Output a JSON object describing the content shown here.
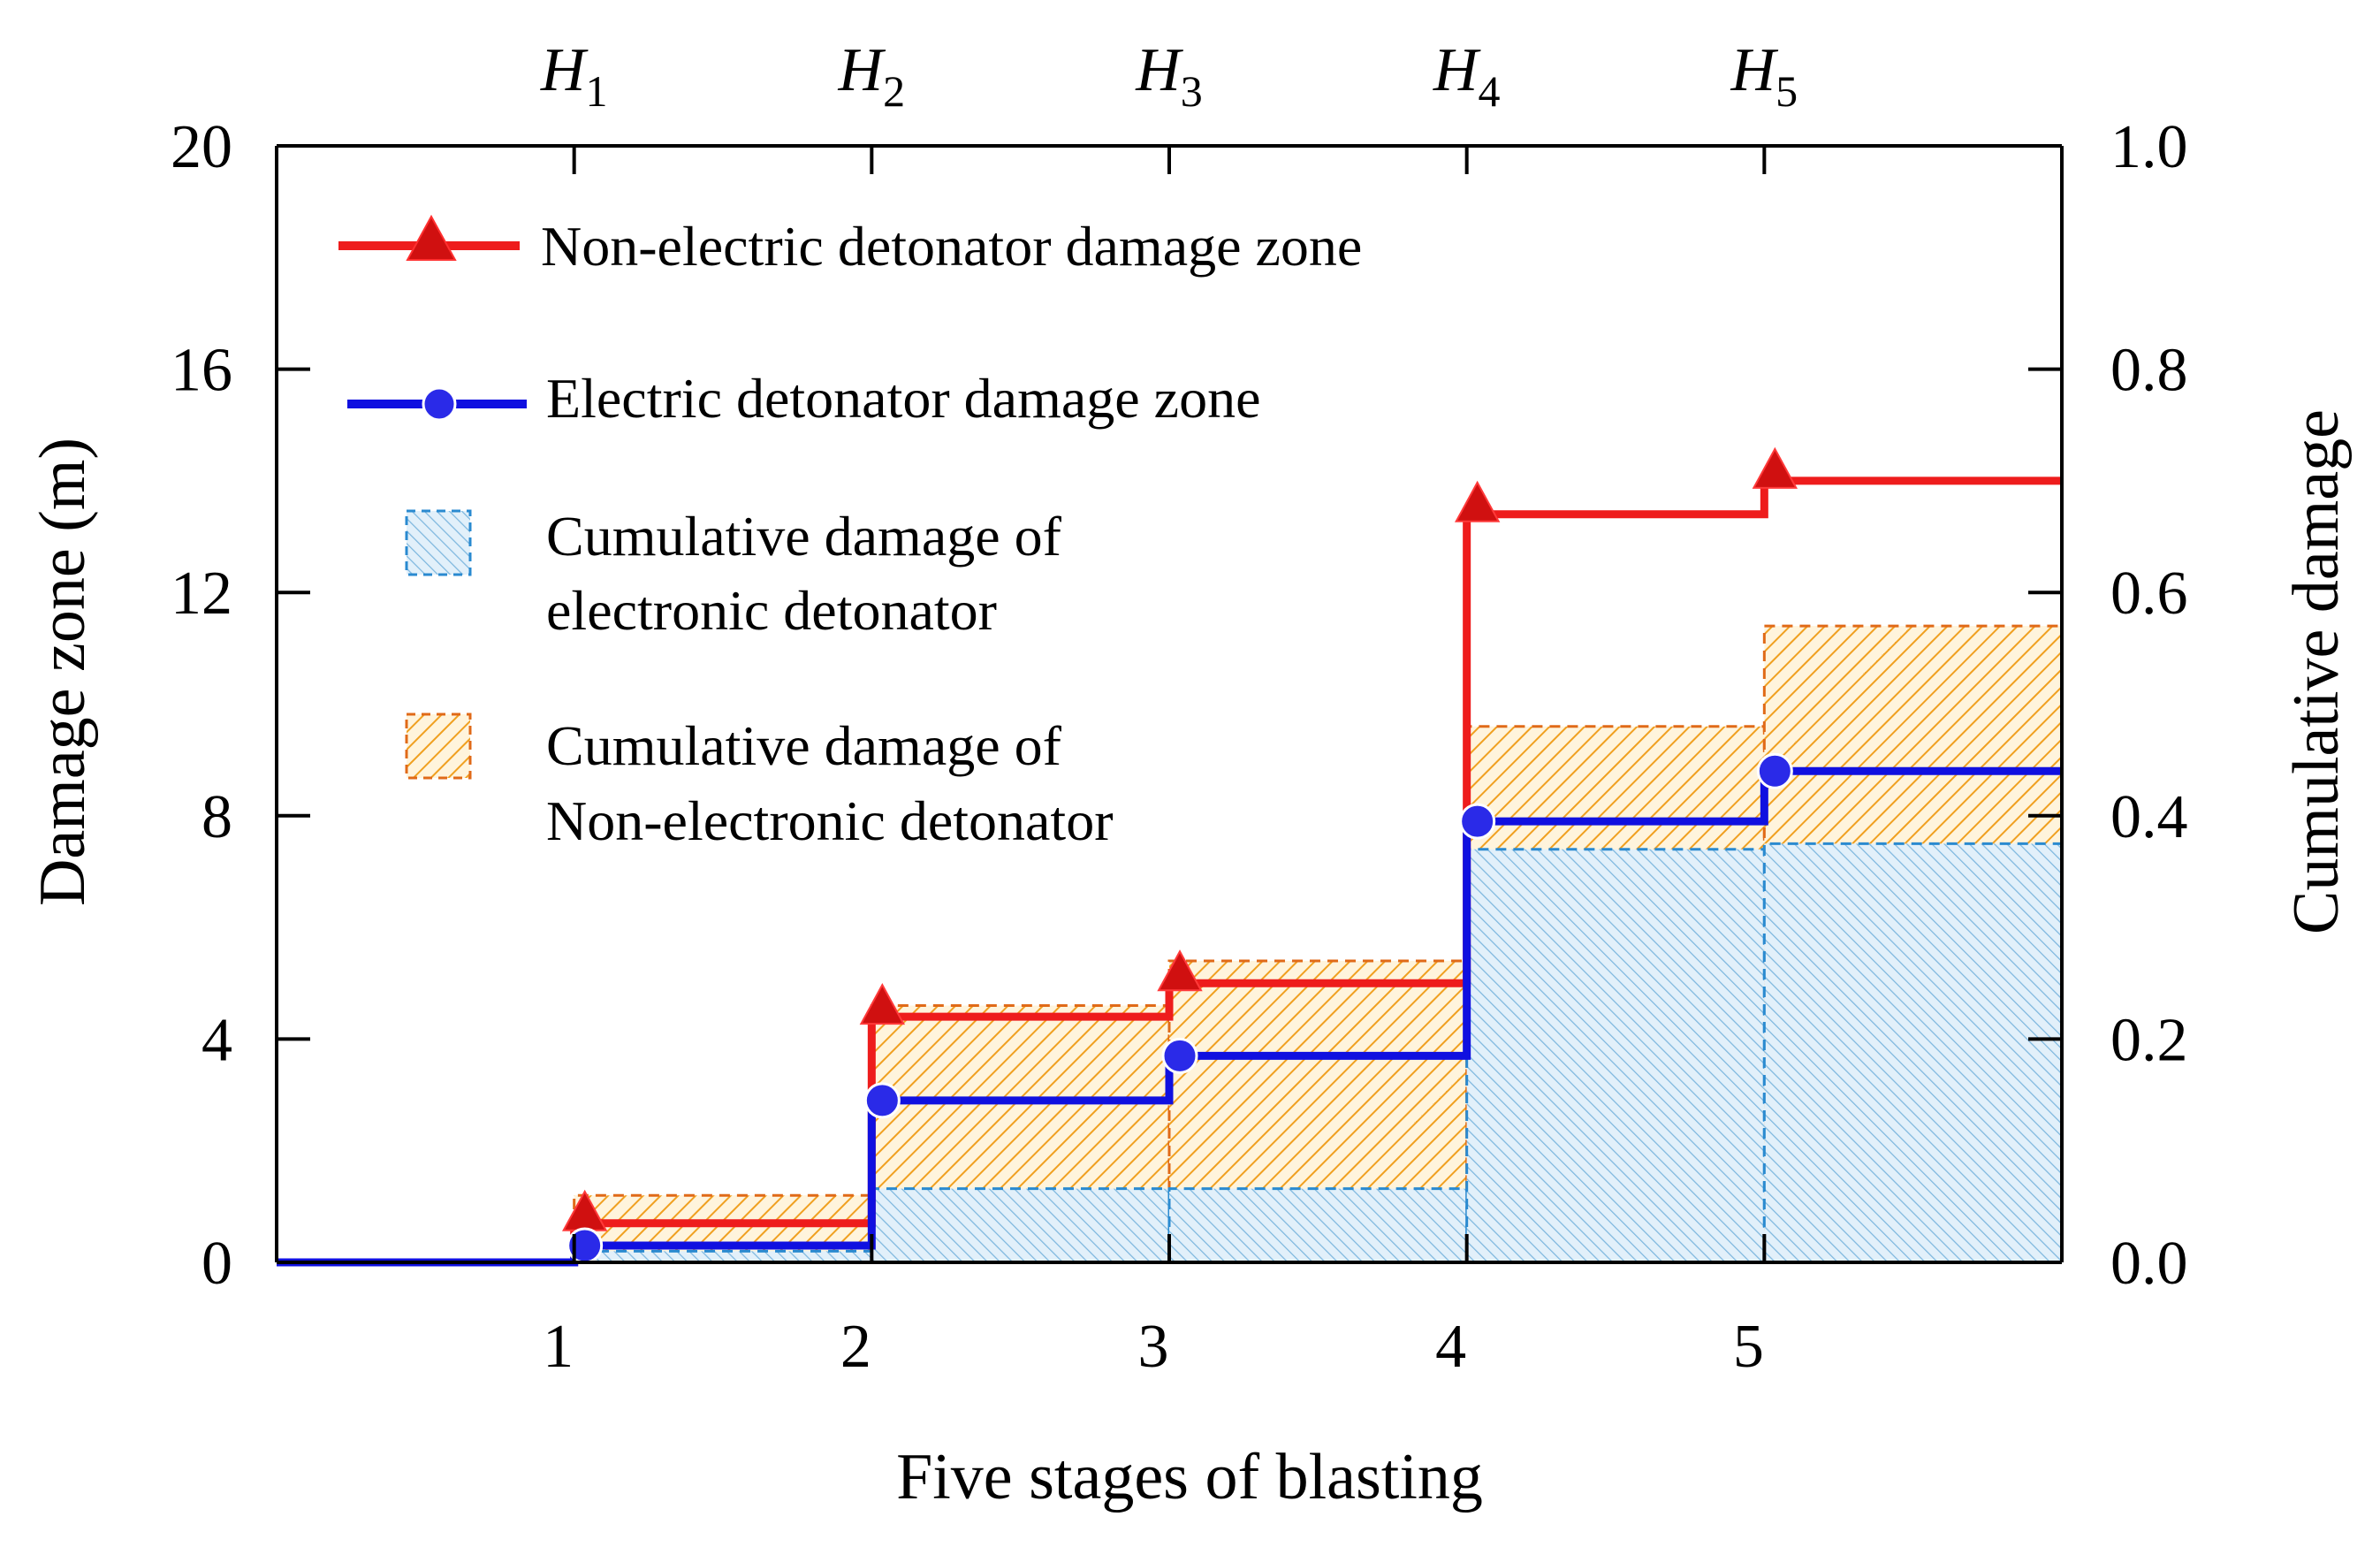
{
  "chart_data": {
    "type": "step-line-with-area",
    "xlabel": "Five stages of blasting",
    "ylabel_left": "Damage zone (m)",
    "ylabel_right": "Cumulative damage",
    "x_ticks": [
      "1",
      "2",
      "3",
      "4",
      "5"
    ],
    "top_labels": [
      {
        "base": "H",
        "sub": "1"
      },
      {
        "base": "H",
        "sub": "2"
      },
      {
        "base": "H",
        "sub": "3"
      },
      {
        "base": "H",
        "sub": "4"
      },
      {
        "base": "H",
        "sub": "5"
      }
    ],
    "xlim": [
      0,
      6
    ],
    "ylim_left": [
      0,
      20
    ],
    "ylim_right": [
      0,
      1.0
    ],
    "yticks_left": [
      "0",
      "4",
      "8",
      "12",
      "16",
      "20"
    ],
    "yticks_right": [
      "0.0",
      "0.2",
      "0.4",
      "0.6",
      "0.8",
      "1.0"
    ],
    "series": [
      {
        "name": "Non-electric detonator damage zone",
        "color": "#ee1c1c",
        "marker": "triangle",
        "x": [
          0,
          1,
          2,
          3,
          4,
          5,
          6
        ],
        "values": [
          0,
          0.7,
          4.4,
          5.0,
          13.4,
          14.0,
          14.0
        ]
      },
      {
        "name": "Electric detonator damage zone",
        "color": "#1010e0",
        "marker": "circle",
        "x": [
          0,
          1,
          2,
          3,
          4,
          5,
          6
        ],
        "values": [
          0,
          0.3,
          2.9,
          3.7,
          7.9,
          8.8,
          8.8
        ]
      }
    ],
    "areas": [
      {
        "name": "Cumulative damage of Non-electronic detonator",
        "label_lines": [
          "Cumulative damage of",
          "Non-electronic detonator"
        ],
        "color": "#f0a020",
        "edge_color": "#e06a18",
        "x": [
          1,
          2,
          3,
          4,
          5,
          6
        ],
        "values": [
          0.06,
          0.23,
          0.27,
          0.48,
          0.57
        ]
      },
      {
        "name": "Cumulative damage of electronic detonator",
        "label_lines": [
          "Cumulative damage of",
          "electronic detonator"
        ],
        "color": "#88bde0",
        "edge_color": "#2a8ad0",
        "x": [
          1,
          2,
          3,
          4,
          5,
          6
        ],
        "values": [
          0.01,
          0.066,
          0.066,
          0.37,
          0.375
        ]
      }
    ],
    "legend": [
      "Non-electric detonator damage zone",
      "Electric detonator damage zone",
      "Cumulative damage of electronic detonator",
      "Cumulative damage of Non-electronic detonator"
    ],
    "legend_position": "top-left"
  }
}
